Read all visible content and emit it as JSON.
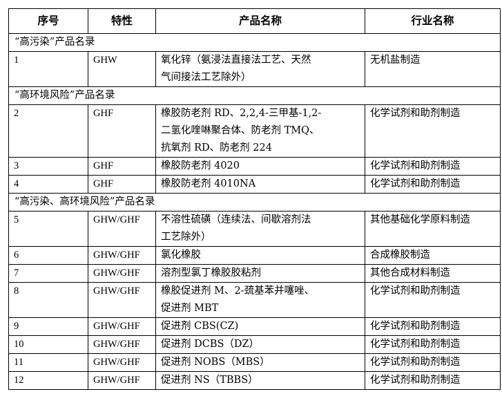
{
  "headers": [
    "序号",
    "特性",
    "产品名称",
    "行业名称"
  ],
  "rows": [
    {
      "type": "section",
      "label": "“高污染”产品名录"
    },
    {
      "type": "item",
      "no": "1",
      "attr": "GHW",
      "lines": [
        "氧化锌（氨浸法直接法工艺、天然",
        "气间接法工艺除外）"
      ],
      "industry": "无机盐制造"
    },
    {
      "type": "section",
      "label": "“高环境风险”产品名录"
    },
    {
      "type": "item",
      "no": "2",
      "attr": "GHF",
      "lines": [
        "橡胶防老剂 RD、2,2,4-三甲基-1,2-",
        "二氢化喹啉聚合体、防老剂 TMQ、",
        "抗氧剂 RD、防老剂 224"
      ],
      "industry": "化学试剂和助剂制造"
    },
    {
      "type": "item",
      "no": "3",
      "attr": "GHF",
      "lines": [
        "橡胶防老剂 4020"
      ],
      "industry": "化学试剂和助剂制造"
    },
    {
      "type": "item",
      "no": "4",
      "attr": "GHF",
      "lines": [
        "橡胶防老剂 4010NA"
      ],
      "industry": "化学试剂和助剂制造"
    },
    {
      "type": "section",
      "label": "“高污染、高环境风险”产品名录"
    },
    {
      "type": "item",
      "no": "5",
      "attr": "GHW/GHF",
      "lines": [
        "不溶性硫磺（连续法、间歇溶剂法",
        "工艺除外）"
      ],
      "industry": "其他基础化学原料制造"
    },
    {
      "type": "item",
      "no": "6",
      "attr": "GHW/GHF",
      "lines": [
        "氯化橡胶"
      ],
      "industry": "合成橡胶制造"
    },
    {
      "type": "item",
      "no": "7",
      "attr": "GHW/GHF",
      "lines": [
        "溶剂型氯丁橡胶胶粘剂"
      ],
      "industry": "其他合成材料制造"
    },
    {
      "type": "item",
      "no": "8",
      "attr": "GHW/GHF",
      "lines": [
        "橡胶促进剂 M、2-巯基苯并噻唑、",
        "促进剂 MBT"
      ],
      "industry": "化学试剂和助剂制造"
    },
    {
      "type": "item",
      "no": "9",
      "attr": "GHW/GHF",
      "lines": [
        "促进剂 CBS(CZ)"
      ],
      "industry": "化学试剂和助剂制造"
    },
    {
      "type": "item",
      "no": "10",
      "attr": "GHW/GHF",
      "lines": [
        "促进剂 DCBS（DZ）"
      ],
      "industry": "化学试剂和助剂制造"
    },
    {
      "type": "item",
      "no": "11",
      "attr": "GHW/GHF",
      "lines": [
        "促进剂 NOBS（MBS）"
      ],
      "industry": "化学试剂和助剂制造"
    },
    {
      "type": "item",
      "no": "12",
      "attr": "GHW/GHF",
      "lines": [
        "促进剂 NS（TBBS）"
      ],
      "industry": "化学试剂和助剂制造"
    }
  ]
}
